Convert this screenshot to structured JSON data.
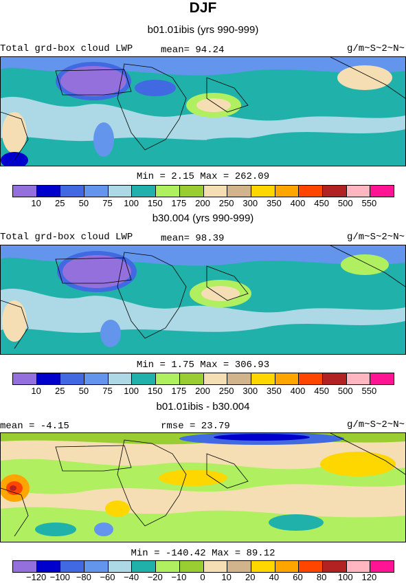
{
  "title": "DJF",
  "panels": [
    {
      "subtitle": "b01.01ibis (yrs 990-999)",
      "left_label": "Total grd-box cloud LWP",
      "stat_label": "mean=  94.24",
      "units": "g/m~S~2~N~",
      "minmax": "Min =   2.15 Max = 262.09"
    },
    {
      "subtitle": "b30.004 (yrs 990-999)",
      "left_label": "Total grd-box cloud LWP",
      "stat_label": "mean=  98.39",
      "units": "g/m~S~2~N~",
      "minmax": "Min =   1.75 Max = 306.93"
    },
    {
      "subtitle": "b01.01ibis - b30.004",
      "left_label": "mean =  -4.15",
      "stat_label": "rmse =  23.79",
      "units": "g/m~S~2~N~",
      "minmax": "Min = -140.42 Max =  89.12"
    }
  ],
  "colorbar_abs": {
    "colors": [
      "#9370db",
      "#0000cd",
      "#4169e1",
      "#6495ed",
      "#add8e6",
      "#20b2aa",
      "#b0f060",
      "#9acd32",
      "#f5deb3",
      "#d2b48c",
      "#ffd700",
      "#ffa500",
      "#ff4500",
      "#b22222",
      "#ffb6c1",
      "#ff1493"
    ],
    "ticks": [
      "10",
      "25",
      "50",
      "75",
      "100",
      "150",
      "175",
      "200",
      "250",
      "300",
      "350",
      "400",
      "450",
      "500",
      "550"
    ]
  },
  "colorbar_diff": {
    "colors": [
      "#9370db",
      "#0000cd",
      "#4169e1",
      "#6495ed",
      "#add8e6",
      "#20b2aa",
      "#b0f060",
      "#9acd32",
      "#f5deb3",
      "#d2b48c",
      "#ffd700",
      "#ffa500",
      "#ff4500",
      "#b22222",
      "#ffb6c1",
      "#ff1493"
    ],
    "ticks": [
      "-120",
      "-100",
      "-80",
      "-60",
      "-40",
      "-20",
      "-10",
      "0",
      "10",
      "20",
      "40",
      "60",
      "80",
      "100",
      "120"
    ]
  }
}
